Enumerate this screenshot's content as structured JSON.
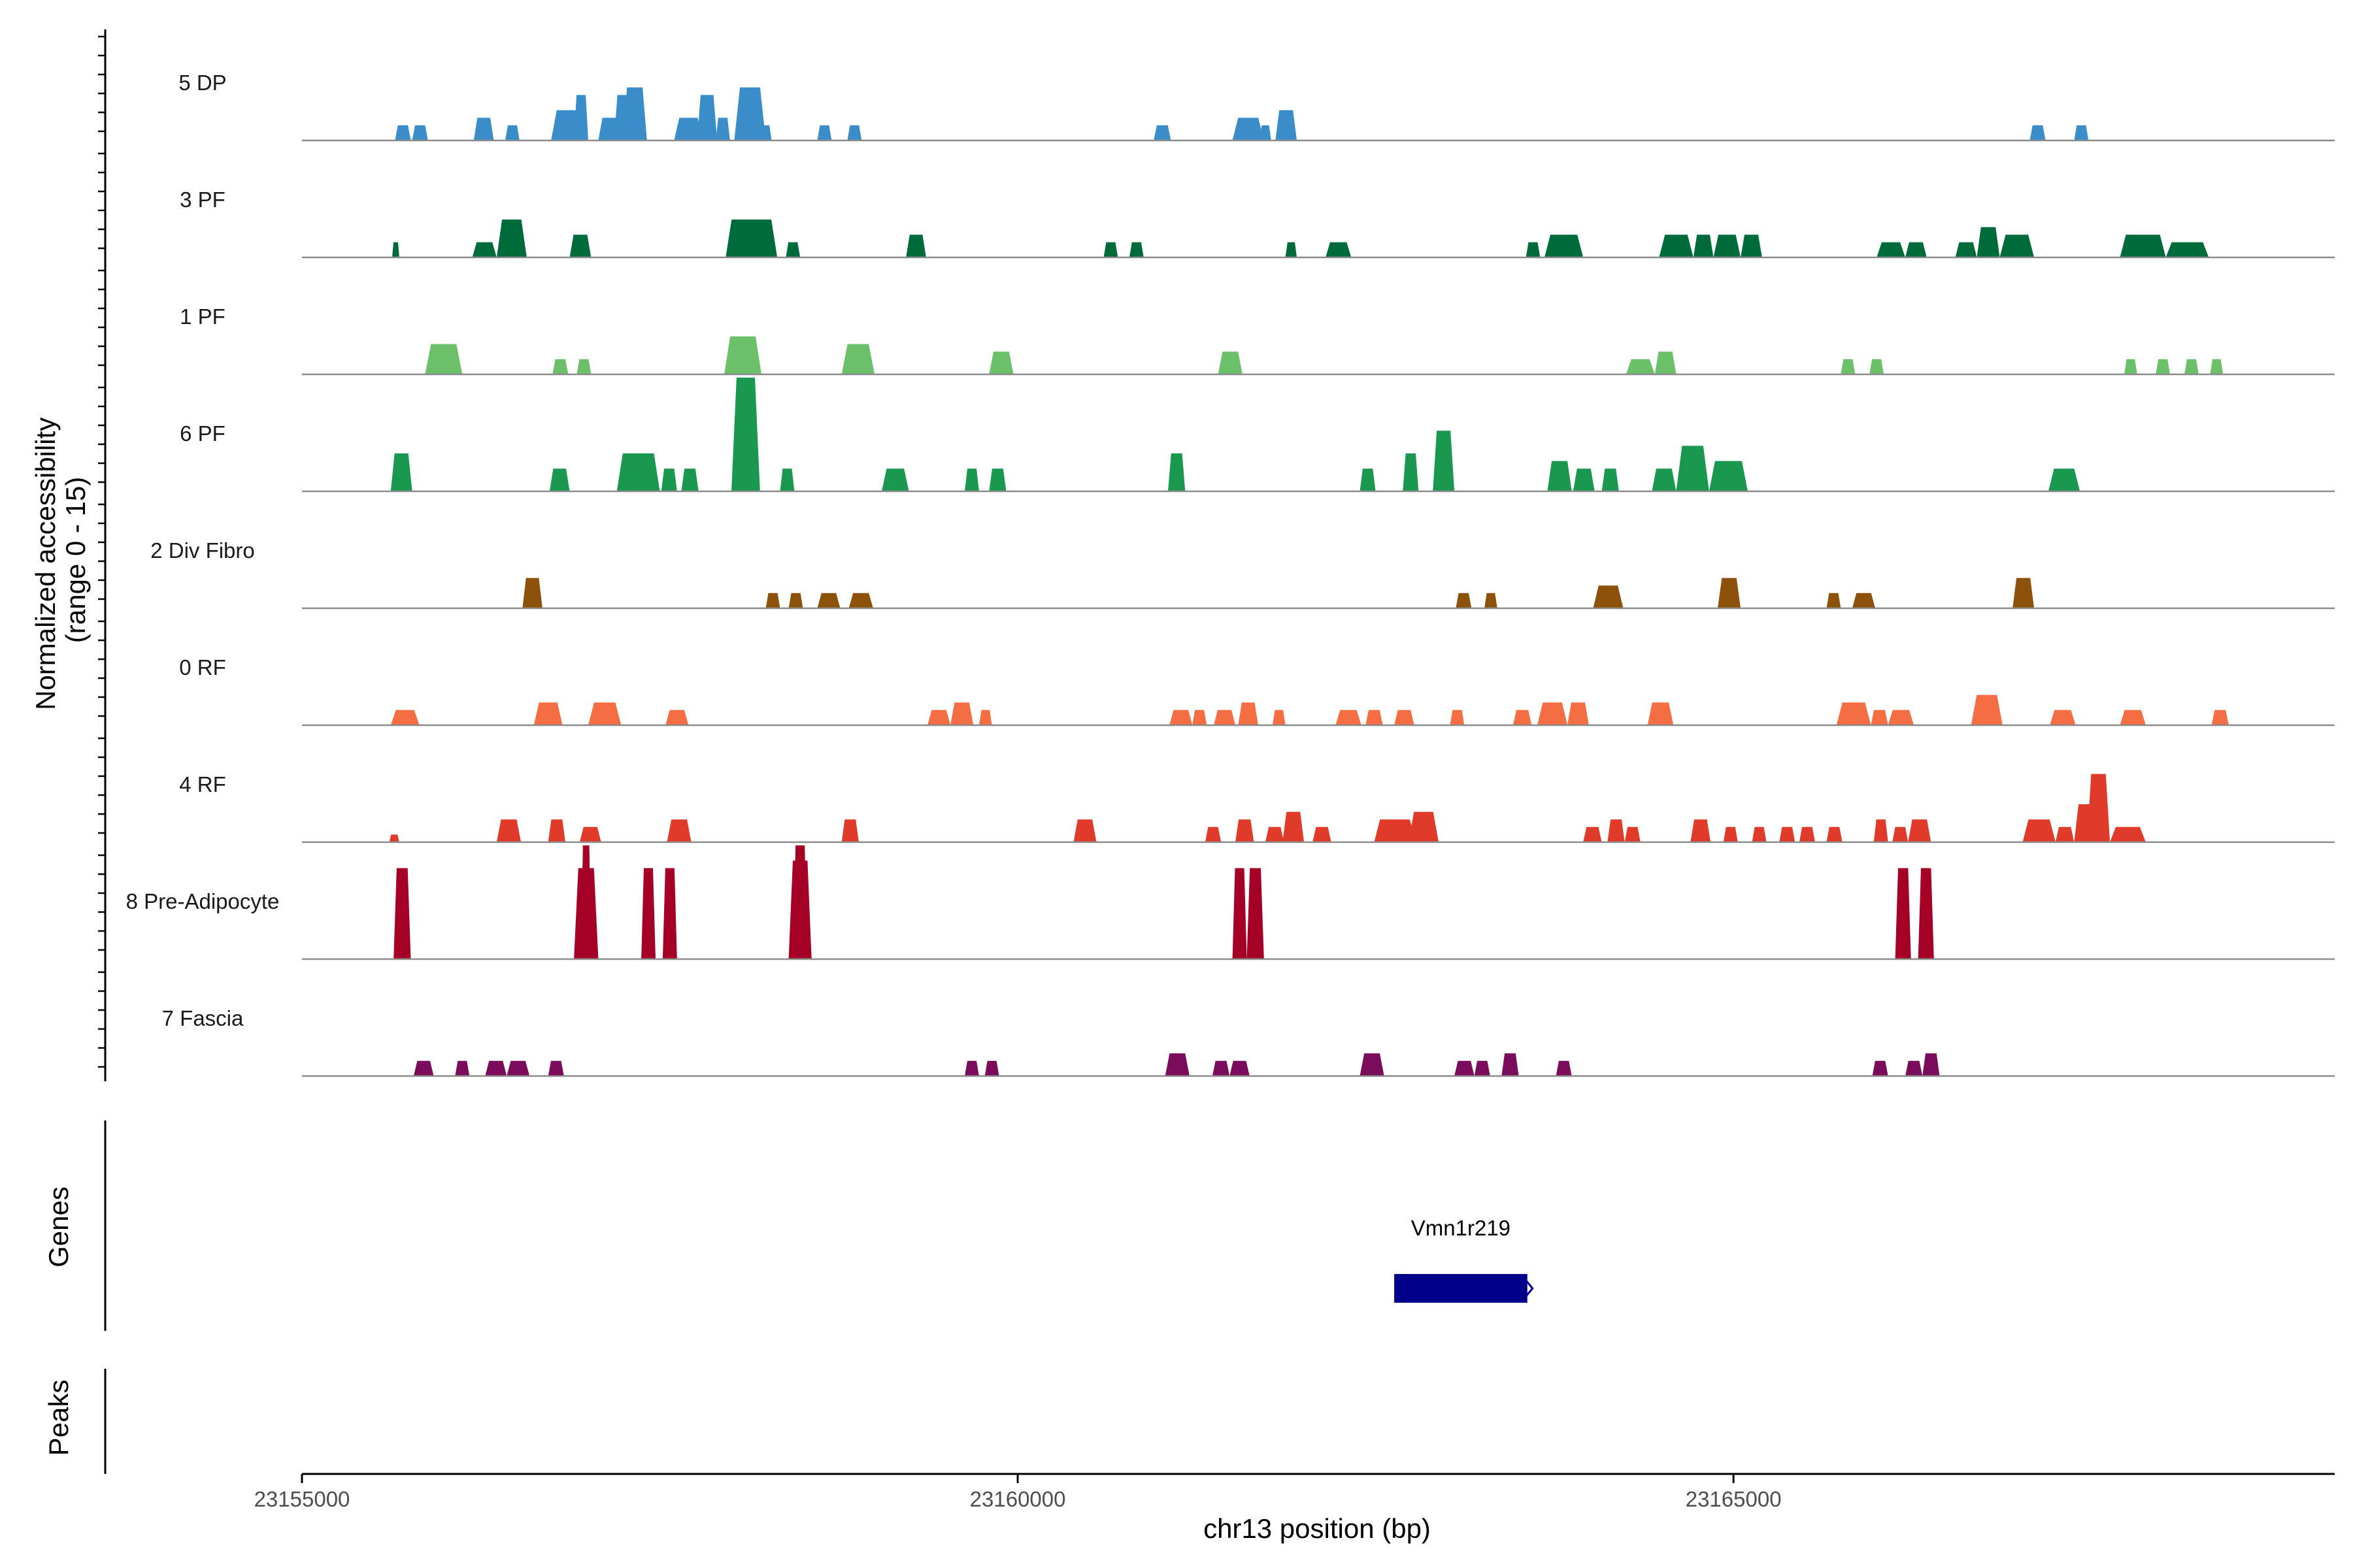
{
  "chart_data": {
    "type": "area",
    "chromosome": "chr13",
    "xlabel": "chr13 position (bp)",
    "ylabel_line1": "Normalized accessibility",
    "ylabel_line2": "(range 0 - 15)",
    "y_range": [
      0,
      15
    ],
    "xlim": [
      23155000,
      23169200
    ],
    "x_ticks": [
      {
        "value": 23155000,
        "label": "23155000"
      },
      {
        "value": 23160000,
        "label": "23160000"
      },
      {
        "value": 23165000,
        "label": "23165000"
      }
    ],
    "panel_labels": {
      "genes": "Genes",
      "peaks": "Peaks"
    },
    "tracks": [
      {
        "name": "5 DP",
        "color": "#3a8dc9",
        "peaks": [
          [
            23155650,
            23155760,
            2
          ],
          [
            23155770,
            23155880,
            2
          ],
          [
            23156200,
            23156340,
            3
          ],
          [
            23156420,
            23156520,
            2
          ],
          [
            23156740,
            23156960,
            4
          ],
          [
            23156900,
            23157000,
            6
          ],
          [
            23157070,
            23157230,
            3
          ],
          [
            23157180,
            23157310,
            6
          ],
          [
            23157240,
            23157410,
            7
          ],
          [
            23157600,
            23157800,
            3
          ],
          [
            23157760,
            23157900,
            6
          ],
          [
            23157890,
            23157990,
            3
          ],
          [
            23158020,
            23158240,
            7
          ],
          [
            23158200,
            23158280,
            2
          ],
          [
            23158600,
            23158700,
            2
          ],
          [
            23158810,
            23158910,
            2
          ],
          [
            23160950,
            23161070,
            2
          ],
          [
            23161500,
            23161720,
            3
          ],
          [
            23161690,
            23161770,
            2
          ],
          [
            23161800,
            23161950,
            4
          ],
          [
            23167070,
            23167180,
            2
          ],
          [
            23167380,
            23167480,
            2
          ]
        ]
      },
      {
        "name": "3 PF",
        "color": "#006b3a",
        "peaks": [
          [
            23155630,
            23155680,
            2
          ],
          [
            23156190,
            23156360,
            2
          ],
          [
            23156360,
            23156570,
            5
          ],
          [
            23156870,
            23157020,
            3
          ],
          [
            23157960,
            23158320,
            5
          ],
          [
            23158380,
            23158480,
            2
          ],
          [
            23159220,
            23159360,
            3
          ],
          [
            23160600,
            23160700,
            2
          ],
          [
            23160780,
            23160880,
            2
          ],
          [
            23161870,
            23161950,
            2
          ],
          [
            23162150,
            23162330,
            2
          ],
          [
            23163550,
            23163650,
            2
          ],
          [
            23163680,
            23163950,
            3
          ],
          [
            23164480,
            23164720,
            3
          ],
          [
            23164720,
            23164860,
            3
          ],
          [
            23164860,
            23165050,
            3
          ],
          [
            23165050,
            23165200,
            3
          ],
          [
            23166000,
            23166200,
            2
          ],
          [
            23166200,
            23166350,
            2
          ],
          [
            23166550,
            23166700,
            2
          ],
          [
            23166700,
            23166860,
            4
          ],
          [
            23166860,
            23167100,
            3
          ],
          [
            23167700,
            23168020,
            3
          ],
          [
            23168020,
            23168320,
            2
          ]
        ]
      },
      {
        "name": "1 PF",
        "color": "#6cc06a",
        "peaks": [
          [
            23155860,
            23156120,
            4
          ],
          [
            23156750,
            23156860,
            2
          ],
          [
            23156920,
            23157020,
            2
          ],
          [
            23157950,
            23158210,
            5
          ],
          [
            23158770,
            23159000,
            4
          ],
          [
            23159800,
            23159970,
            3
          ],
          [
            23161400,
            23161570,
            3
          ],
          [
            23164250,
            23164450,
            2
          ],
          [
            23164450,
            23164600,
            3
          ],
          [
            23165750,
            23165850,
            2
          ],
          [
            23165950,
            23166050,
            2
          ],
          [
            23167730,
            23167820,
            2
          ],
          [
            23167950,
            23168050,
            2
          ],
          [
            23168150,
            23168250,
            2
          ],
          [
            23168330,
            23168420,
            2
          ]
        ]
      },
      {
        "name": "6 PF",
        "color": "#1a9850",
        "peaks": [
          [
            23155620,
            23155770,
            5
          ],
          [
            23156730,
            23156870,
            3
          ],
          [
            23157200,
            23157500,
            5
          ],
          [
            23157510,
            23157620,
            3
          ],
          [
            23157650,
            23157770,
            3
          ],
          [
            23158000,
            23158200,
            15
          ],
          [
            23158340,
            23158440,
            3
          ],
          [
            23159050,
            23159240,
            3
          ],
          [
            23159630,
            23159730,
            3
          ],
          [
            23159800,
            23159920,
            3
          ],
          [
            23161050,
            23161170,
            5
          ],
          [
            23162390,
            23162500,
            3
          ],
          [
            23162690,
            23162800,
            5
          ],
          [
            23162900,
            23163050,
            8
          ],
          [
            23163700,
            23163870,
            4
          ],
          [
            23163880,
            23164030,
            3
          ],
          [
            23164080,
            23164200,
            3
          ],
          [
            23164430,
            23164600,
            3
          ],
          [
            23164600,
            23164830,
            6
          ],
          [
            23164830,
            23165100,
            4
          ],
          [
            23167200,
            23167420,
            3
          ]
        ]
      },
      {
        "name": "2 Div Fibro",
        "color": "#8c510a",
        "peaks": [
          [
            23156540,
            23156680,
            4
          ],
          [
            23158240,
            23158340,
            2
          ],
          [
            23158400,
            23158500,
            2
          ],
          [
            23158600,
            23158760,
            2
          ],
          [
            23158820,
            23158990,
            2
          ],
          [
            23163060,
            23163170,
            2
          ],
          [
            23163260,
            23163350,
            2
          ],
          [
            23164020,
            23164230,
            3
          ],
          [
            23164890,
            23165050,
            4
          ],
          [
            23165650,
            23165750,
            2
          ],
          [
            23165830,
            23165990,
            2
          ],
          [
            23166950,
            23167100,
            4
          ]
        ]
      },
      {
        "name": "0 RF",
        "color": "#f46d43",
        "peaks": [
          [
            23155620,
            23155820,
            2
          ],
          [
            23156620,
            23156820,
            3
          ],
          [
            23157000,
            23157230,
            3
          ],
          [
            23157540,
            23157700,
            2
          ],
          [
            23159370,
            23159530,
            2
          ],
          [
            23159530,
            23159690,
            3
          ],
          [
            23159730,
            23159820,
            2
          ],
          [
            23161060,
            23161220,
            2
          ],
          [
            23161220,
            23161320,
            2
          ],
          [
            23161370,
            23161520,
            2
          ],
          [
            23161540,
            23161680,
            3
          ],
          [
            23161780,
            23161870,
            2
          ],
          [
            23162220,
            23162400,
            2
          ],
          [
            23162430,
            23162550,
            2
          ],
          [
            23162630,
            23162770,
            2
          ],
          [
            23163020,
            23163120,
            2
          ],
          [
            23163460,
            23163590,
            2
          ],
          [
            23163630,
            23163840,
            3
          ],
          [
            23163840,
            23163990,
            3
          ],
          [
            23164400,
            23164580,
            3
          ],
          [
            23165720,
            23165960,
            3
          ],
          [
            23165960,
            23166080,
            2
          ],
          [
            23166080,
            23166260,
            2
          ],
          [
            23166660,
            23166880,
            4
          ],
          [
            23167210,
            23167390,
            2
          ],
          [
            23167700,
            23167880,
            2
          ],
          [
            23168340,
            23168460,
            2
          ]
        ]
      },
      {
        "name": "4 RF",
        "color": "#e03b2a",
        "peaks": [
          [
            23155610,
            23155680,
            1
          ],
          [
            23156360,
            23156530,
            3
          ],
          [
            23156720,
            23156840,
            3
          ],
          [
            23156940,
            23157090,
            2
          ],
          [
            23157550,
            23157720,
            3
          ],
          [
            23158770,
            23158890,
            3
          ],
          [
            23160390,
            23160550,
            3
          ],
          [
            23161310,
            23161420,
            2
          ],
          [
            23161520,
            23161650,
            3
          ],
          [
            23161730,
            23161860,
            2
          ],
          [
            23161850,
            23162000,
            4
          ],
          [
            23162060,
            23162190,
            2
          ],
          [
            23162490,
            23162780,
            3
          ],
          [
            23162730,
            23162940,
            4
          ],
          [
            23163950,
            23164080,
            2
          ],
          [
            23164120,
            23164240,
            3
          ],
          [
            23164240,
            23164350,
            2
          ],
          [
            23164700,
            23164840,
            3
          ],
          [
            23164930,
            23165030,
            2
          ],
          [
            23165130,
            23165230,
            2
          ],
          [
            23165320,
            23165430,
            2
          ],
          [
            23165460,
            23165570,
            2
          ],
          [
            23165650,
            23165760,
            2
          ],
          [
            23165980,
            23166080,
            3
          ],
          [
            23166110,
            23166220,
            2
          ],
          [
            23166220,
            23166380,
            3
          ],
          [
            23167020,
            23167250,
            3
          ],
          [
            23167250,
            23167380,
            2
          ],
          [
            23167380,
            23167550,
            5
          ],
          [
            23167470,
            23167630,
            9
          ],
          [
            23167630,
            23167880,
            2
          ]
        ]
      },
      {
        "name": "8 Pre-Adipocyte",
        "color": "#a50026",
        "peaks": [
          [
            23155640,
            23155760,
            12
          ],
          [
            23156900,
            23157070,
            12
          ],
          [
            23156950,
            23157020,
            15
          ],
          [
            23157370,
            23157470,
            12
          ],
          [
            23157520,
            23157620,
            12
          ],
          [
            23158400,
            23158560,
            13
          ],
          [
            23158430,
            23158530,
            15
          ],
          [
            23161500,
            23161600,
            12
          ],
          [
            23161600,
            23161720,
            12
          ],
          [
            23166130,
            23166240,
            12
          ],
          [
            23166290,
            23166400,
            12
          ]
        ]
      },
      {
        "name": "7 Fascia",
        "color": "#7a0c5b",
        "peaks": [
          [
            23155780,
            23155920,
            2
          ],
          [
            23156070,
            23156170,
            2
          ],
          [
            23156280,
            23156430,
            2
          ],
          [
            23156430,
            23156590,
            2
          ],
          [
            23156720,
            23156830,
            2
          ],
          [
            23159630,
            23159730,
            2
          ],
          [
            23159770,
            23159870,
            2
          ],
          [
            23161030,
            23161200,
            3
          ],
          [
            23161360,
            23161480,
            2
          ],
          [
            23161480,
            23161620,
            2
          ],
          [
            23162390,
            23162560,
            3
          ],
          [
            23163050,
            23163190,
            2
          ],
          [
            23163190,
            23163300,
            2
          ],
          [
            23163380,
            23163500,
            3
          ],
          [
            23163760,
            23163870,
            2
          ],
          [
            23165970,
            23166080,
            2
          ],
          [
            23166200,
            23166320,
            2
          ],
          [
            23166320,
            23166440,
            3
          ]
        ]
      }
    ],
    "genes": [
      {
        "name": "Vmn1r219",
        "start": 23162630,
        "end": 23163560,
        "strand": "+",
        "color": "#00008b"
      }
    ],
    "peaks_track": []
  }
}
